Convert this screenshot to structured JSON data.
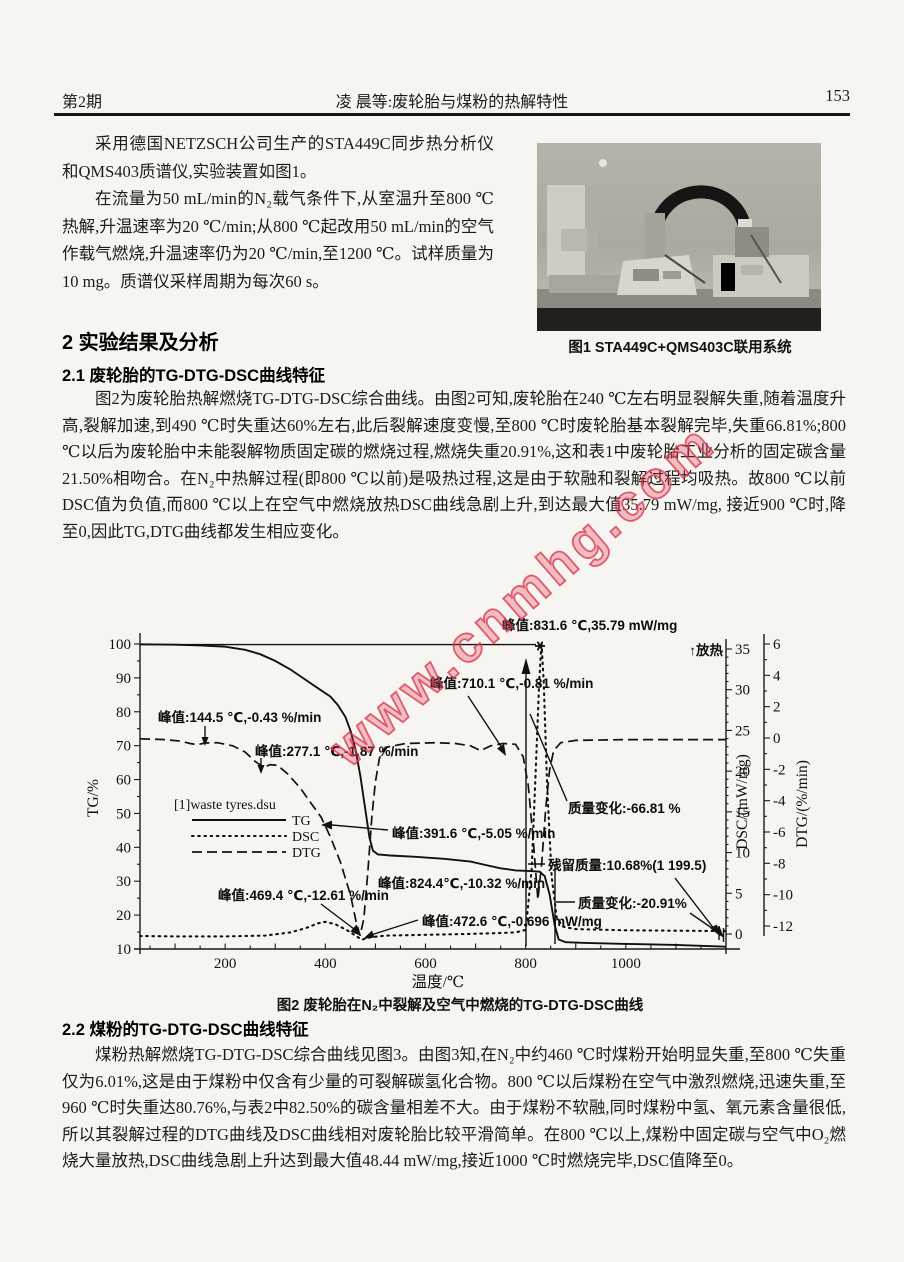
{
  "page": {
    "header": {
      "issue": "第2期",
      "running_title": "凌  晨等:废轮胎与煤粉的热解特性",
      "page_number": "153"
    },
    "intro": {
      "p1": "采用德国NETZSCH公司生产的STA449C同步热分析仪和QMS403质谱仪,实验装置如图1。",
      "p2": "在流量为50 mL/min的N₂载气条件下,从室温升至800 ℃热解,升温速率为20 ℃/min;从800 ℃起改用50 mL/min的空气作载气燃烧,升温速率仍为20 ℃/min,至1200 ℃。试样质量为10 mg。质谱仪采样周期为每次60 s。"
    },
    "figure1": {
      "caption": "图1  STA449C+QMS403C联用系统"
    },
    "section2": {
      "heading": "2  实验结果及分析",
      "s21_heading": "2.1  废轮胎的TG-DTG-DSC曲线特征",
      "s21_body": "图2为废轮胎热解燃烧TG-DTG-DSC综合曲线。由图2可知,废轮胎在240 ℃左右明显裂解失重,随着温度升高,裂解加速,到490 ℃时失重达60%左右,此后裂解速度变慢,至800 ℃时废轮胎基本裂解完毕,失重66.81%;800 ℃以后为废轮胎中未能裂解物质固定碳的燃烧过程,燃烧失重20.91%,这和表1中废轮胎工业分析的固定碳含量21.50%相吻合。在N₂中热解过程(即800 ℃以前)是吸热过程,这是由于软融和裂解过程均吸热。故800 ℃以前DSC值为负值,而800 ℃以上在空气中燃烧放热DSC曲线急剧上升,到达最大值35.79 mW/mg, 接近900 ℃时,降至0,因此TG,DTG曲线都发生相应变化。",
      "figure2_caption": "图2  废轮胎在N₂中裂解及空气中燃烧的TG-DTG-DSC曲线",
      "s22_heading": "2.2  煤粉的TG-DTG-DSC曲线特征",
      "s22_body": "煤粉热解燃烧TG-DTG-DSC综合曲线见图3。由图3知,在N₂中约460 ℃时煤粉开始明显失重,至800 ℃失重仅为6.01%,这是由于煤粉中仅含有少量的可裂解碳氢化合物。800 ℃以后煤粉在空气中激烈燃烧,迅速失重,至960 ℃时失重达80.76%,与表2中82.50%的碳含量相差不大。由于煤粉不软融,同时煤粉中氢、氧元素含量很低,所以其裂解过程的DTG曲线及DSC曲线相对废轮胎比较平滑简单。在800 ℃以上,煤粉中固定碳与空气中O₂燃烧大量放热,DSC曲线急剧上升达到最大值48.44 mW/mg,接近1000 ℃时燃烧完毕,DSC值降至0。"
    },
    "watermark": "www.cnmhg.com"
  },
  "chart_data": {
    "type": "line",
    "title": "图2 废轮胎在N₂中裂解及空气中燃烧的TG-DTG-DSC曲线",
    "xlabel": "温度/℃",
    "x_axis": {
      "range": [
        30,
        1200
      ],
      "ticks": [
        200,
        400,
        600,
        800,
        1000
      ]
    },
    "y_axes": [
      {
        "id": "TG",
        "label": "TG/%",
        "range": [
          10,
          100
        ],
        "ticks": [
          100,
          90,
          80,
          70,
          60,
          50,
          40,
          30,
          20,
          10
        ]
      },
      {
        "id": "DSC",
        "label": "DSC/(mW/mg)",
        "range": [
          0,
          35
        ],
        "ticks": [
          35,
          30,
          25,
          20,
          15,
          10,
          5,
          0
        ]
      },
      {
        "id": "DTG",
        "label": "DTG/(%/min)",
        "range": [
          -13,
          6
        ],
        "ticks": [
          6,
          4,
          2,
          0,
          -2,
          -4,
          -6,
          -8,
          -10,
          -12
        ]
      }
    ],
    "legend": {
      "title": "[1]waste tyres.dsu",
      "tg": "TG",
      "dsc": "DSC",
      "dtg": "DTG"
    },
    "grid": false,
    "series": [
      {
        "name": "TG",
        "axis": "TG",
        "style": "solid",
        "points": [
          [
            30,
            99.9
          ],
          [
            100,
            99.8
          ],
          [
            150,
            99.6
          ],
          [
            200,
            99.2
          ],
          [
            240,
            98.3
          ],
          [
            270,
            97
          ],
          [
            300,
            95
          ],
          [
            330,
            92.5
          ],
          [
            360,
            89.5
          ],
          [
            390,
            86.5
          ],
          [
            410,
            84.5
          ],
          [
            425,
            82
          ],
          [
            440,
            78.5
          ],
          [
            450,
            74.5
          ],
          [
            460,
            69
          ],
          [
            470,
            61
          ],
          [
            480,
            51
          ],
          [
            488,
            43
          ],
          [
            495,
            39
          ],
          [
            505,
            37.9
          ],
          [
            530,
            37.6
          ],
          [
            580,
            37.2
          ],
          [
            640,
            36.6
          ],
          [
            690,
            35.8
          ],
          [
            720,
            34.8
          ],
          [
            750,
            33.8
          ],
          [
            780,
            33.2
          ],
          [
            810,
            33
          ],
          [
            828,
            32.8
          ],
          [
            838,
            31.5
          ],
          [
            848,
            26
          ],
          [
            858,
            17
          ],
          [
            866,
            12.8
          ],
          [
            880,
            12
          ],
          [
            920,
            11.8
          ],
          [
            1000,
            11.5
          ],
          [
            1100,
            11.2
          ],
          [
            1199.5,
            10.68
          ]
        ]
      },
      {
        "name": "DSC",
        "axis": "DSC",
        "style": "dotted",
        "points": [
          [
            30,
            -0.25
          ],
          [
            100,
            -0.3
          ],
          [
            200,
            -0.3
          ],
          [
            280,
            -0.2
          ],
          [
            330,
            0.2
          ],
          [
            360,
            0.7
          ],
          [
            385,
            1.3
          ],
          [
            400,
            1.5
          ],
          [
            420,
            1.2
          ],
          [
            445,
            0.4
          ],
          [
            460,
            -0.2
          ],
          [
            472.6,
            -0.696
          ],
          [
            490,
            -0.4
          ],
          [
            520,
            -0.2
          ],
          [
            600,
            -0.1
          ],
          [
            680,
            0
          ],
          [
            740,
            0.1
          ],
          [
            780,
            0.2
          ],
          [
            800,
            0.5
          ],
          [
            812,
            8
          ],
          [
            820,
            20
          ],
          [
            827,
            31
          ],
          [
            831.6,
            35.79
          ],
          [
            836,
            31
          ],
          [
            843,
            18
          ],
          [
            852,
            7
          ],
          [
            862,
            2
          ],
          [
            875,
            0.9
          ],
          [
            900,
            0.6
          ],
          [
            1000,
            0.45
          ],
          [
            1100,
            0.4
          ],
          [
            1200,
            0.35
          ]
        ]
      },
      {
        "name": "DTG",
        "axis": "DTG",
        "style": "dashed",
        "points": [
          [
            30,
            -0.05
          ],
          [
            80,
            -0.1
          ],
          [
            110,
            -0.2
          ],
          [
            130,
            -0.35
          ],
          [
            144.5,
            -0.43
          ],
          [
            160,
            -0.32
          ],
          [
            185,
            -0.3
          ],
          [
            215,
            -0.5
          ],
          [
            240,
            -0.9
          ],
          [
            260,
            -1.5
          ],
          [
            277.1,
            -1.87
          ],
          [
            290,
            -1.7
          ],
          [
            305,
            -1.75
          ],
          [
            325,
            -2.3
          ],
          [
            350,
            -3.2
          ],
          [
            370,
            -4.1
          ],
          [
            391.6,
            -5.05
          ],
          [
            410,
            -6.3
          ],
          [
            430,
            -7.9
          ],
          [
            450,
            -10
          ],
          [
            462,
            -11.8
          ],
          [
            469.4,
            -12.61
          ],
          [
            477,
            -11.5
          ],
          [
            485,
            -8.5
          ],
          [
            493,
            -5
          ],
          [
            500,
            -2.8
          ],
          [
            508,
            -1.3
          ],
          [
            520,
            -0.6
          ],
          [
            560,
            -0.35
          ],
          [
            620,
            -0.3
          ],
          [
            660,
            -0.35
          ],
          [
            690,
            -0.5
          ],
          [
            710.1,
            -0.81
          ],
          [
            730,
            -0.5
          ],
          [
            755,
            -0.35
          ],
          [
            780,
            -0.4
          ],
          [
            795,
            -1.2
          ],
          [
            805,
            -3
          ],
          [
            815,
            -6.5
          ],
          [
            824.4,
            -10.32
          ],
          [
            832,
            -8
          ],
          [
            840,
            -4.5
          ],
          [
            848,
            -2
          ],
          [
            856,
            -0.8
          ],
          [
            870,
            -0.3
          ],
          [
            900,
            -0.15
          ],
          [
            1000,
            -0.1
          ],
          [
            1100,
            -0.1
          ],
          [
            1200,
            -0.1
          ]
        ]
      }
    ],
    "annotations": {
      "peak_dsc_max": "峰值:831.6 ℃,35.79 mW/mg",
      "exothermic": "↑放热",
      "peak_710": "峰值:710.1 ℃,-0.81 %/min",
      "peak_144": "峰值:144.5 ℃,-0.43 %/min",
      "peak_277": "峰值:277.1 ℃,-1.87 %/min",
      "peak_391": "峰值:391.6 ℃,-5.05 %/min",
      "peak_469": "峰值:469.4 ℃,-12.61  %/min",
      "peak_824": "峰值:824.4℃,-10.32  %/min",
      "peak_472": "峰值:472.6 ℃,-0.696  mW/mg",
      "mass_change_1": "质量变化:-66.81 %",
      "residual_mass": "残留质量:10.68%(1 199.5)",
      "mass_change_2": "质量变化:-20.91%"
    }
  }
}
